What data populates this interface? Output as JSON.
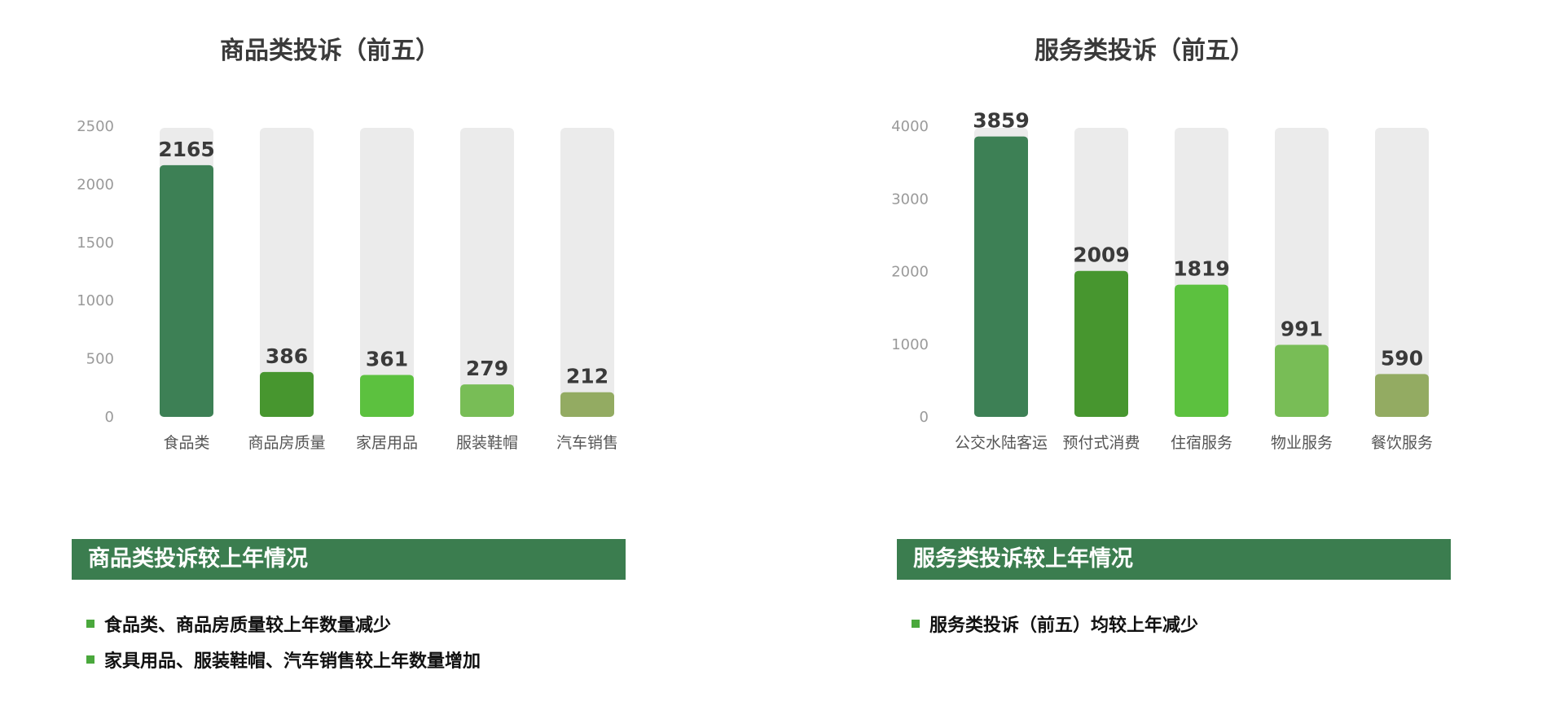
{
  "chart_data": [
    {
      "type": "bar",
      "title": "商品类投诉（前五）",
      "categories": [
        "食品类",
        "商品房质量",
        "家居用品",
        "服装鞋帽",
        "汽车销售"
      ],
      "values": [
        2165,
        386,
        361,
        279,
        212
      ],
      "ylim": [
        0,
        2500
      ],
      "yticks": [
        0,
        500,
        1000,
        1500,
        2000,
        2500
      ],
      "xlabel": "",
      "ylabel": "",
      "grid": false,
      "bar_colors": [
        "#3d8055",
        "#47962f",
        "#5cc13f",
        "#78bd56",
        "#93ab62"
      ],
      "track_color": "#ebebeb"
    },
    {
      "type": "bar",
      "title": "服务类投诉（前五）",
      "categories": [
        "公交水陆客运",
        "预付式消费",
        "住宿服务",
        "物业服务",
        "餐饮服务"
      ],
      "values": [
        3859,
        2009,
        1819,
        991,
        590
      ],
      "ylim": [
        0,
        4000
      ],
      "yticks": [
        0,
        1000,
        2000,
        3000,
        4000
      ],
      "xlabel": "",
      "ylabel": "",
      "grid": false,
      "bar_colors": [
        "#3d8055",
        "#47962f",
        "#5cc13f",
        "#78bd56",
        "#93ab62"
      ],
      "track_color": "#ebebeb"
    }
  ],
  "left_panel": {
    "heading": "商品类投诉较上年情况",
    "bullets": [
      "食品类、商品房质量较上年数量减少",
      "家具用品、服装鞋帽、汽车销售较上年数量增加"
    ]
  },
  "right_panel": {
    "heading": "服务类投诉较上年情况",
    "bullets": [
      "服务类投诉（前五）均较上年减少"
    ]
  },
  "colors": {
    "section_bar": "#3b7d4f",
    "bullet_mark": "#4aa83c"
  }
}
